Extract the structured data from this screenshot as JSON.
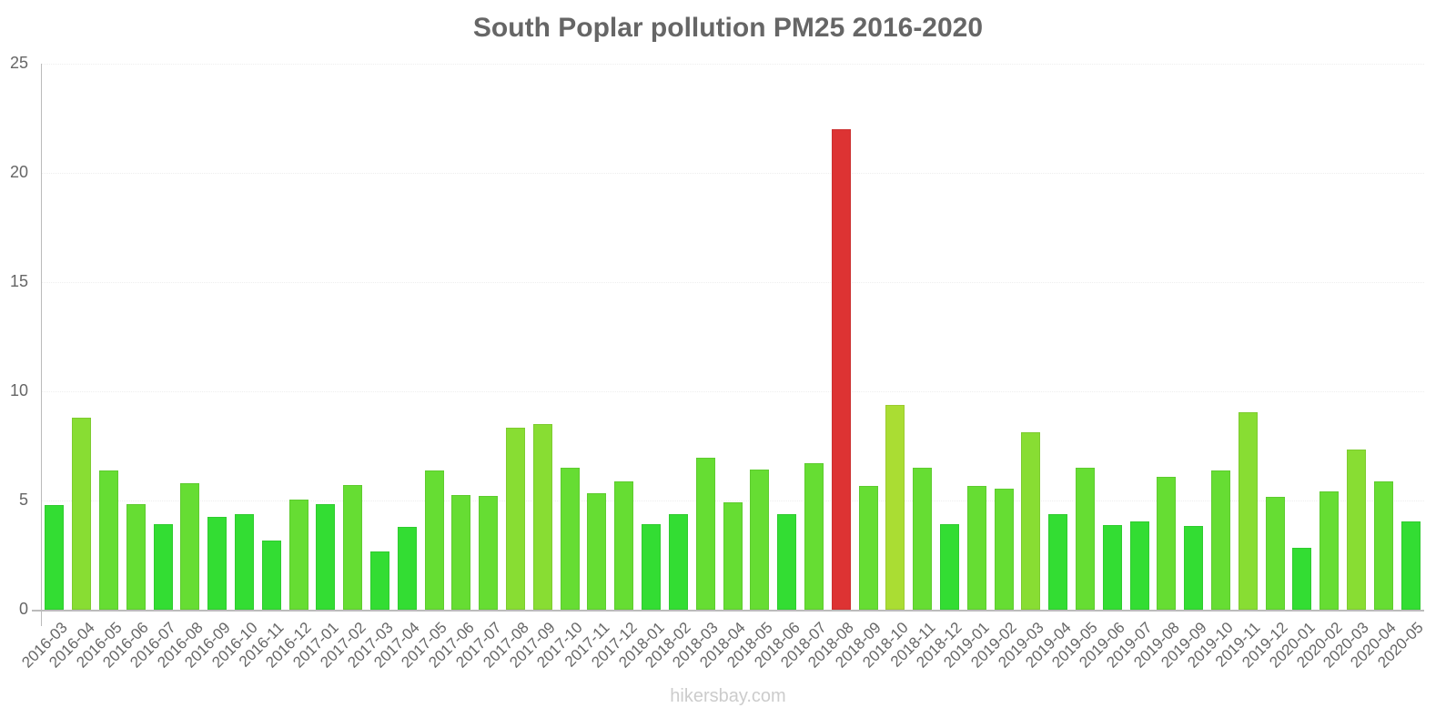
{
  "chart": {
    "title": "South Poplar pollution PM25 2016-2020",
    "footer": "hikersbay.com"
  },
  "chart_data": {
    "type": "bar",
    "title": "South Poplar pollution PM25 2016-2020",
    "xlabel": "",
    "ylabel": "",
    "ylim": [
      0,
      25
    ],
    "yticks": [
      0,
      5,
      10,
      15,
      20,
      25
    ],
    "grid": true,
    "legend": null,
    "categories": [
      "2016-03",
      "2016-04",
      "2016-05",
      "2016-06",
      "2016-07",
      "2016-08",
      "2016-09",
      "2016-10",
      "2016-11",
      "2016-12",
      "2017-01",
      "2017-02",
      "2017-03",
      "2017-04",
      "2017-05",
      "2017-06",
      "2017-07",
      "2017-08",
      "2017-09",
      "2017-10",
      "2017-11",
      "2017-12",
      "2018-01",
      "2018-02",
      "2018-03",
      "2018-04",
      "2018-05",
      "2018-06",
      "2018-07",
      "2018-08",
      "2018-09",
      "2018-10",
      "2018-11",
      "2018-12",
      "2019-01",
      "2019-02",
      "2019-03",
      "2019-04",
      "2019-05",
      "2019-06",
      "2019-07",
      "2019-08",
      "2019-09",
      "2019-10",
      "2019-11",
      "2019-12",
      "2020-01",
      "2020-02",
      "2020-03",
      "2020-04",
      "2020-05"
    ],
    "values": [
      4.78,
      8.78,
      6.38,
      4.85,
      3.92,
      5.79,
      4.25,
      4.39,
      3.15,
      5.06,
      4.82,
      5.69,
      2.65,
      3.81,
      6.36,
      5.25,
      5.19,
      8.33,
      8.49,
      6.5,
      5.35,
      5.88,
      3.93,
      4.39,
      6.96,
      4.9,
      6.42,
      4.36,
      6.71,
      22.0,
      5.65,
      9.39,
      6.5,
      3.92,
      5.68,
      5.54,
      8.14,
      4.36,
      6.5,
      3.86,
      4.06,
      6.1,
      3.85,
      6.38,
      9.04,
      5.17,
      2.83,
      5.42,
      7.35,
      5.88,
      4.03
    ],
    "colors": [
      "#33dd33",
      "#88dd33",
      "#66dd33",
      "#66dd33",
      "#33dd33",
      "#66dd33",
      "#33dd33",
      "#33dd33",
      "#33dd33",
      "#66dd33",
      "#33dd33",
      "#66dd33",
      "#33dd33",
      "#33dd33",
      "#66dd33",
      "#66dd33",
      "#66dd33",
      "#88dd33",
      "#88dd33",
      "#66dd33",
      "#66dd33",
      "#66dd33",
      "#33dd33",
      "#33dd33",
      "#66dd33",
      "#66dd33",
      "#66dd33",
      "#33dd33",
      "#66dd33",
      "#dd3333",
      "#66dd33",
      "#aadd33",
      "#66dd33",
      "#33dd33",
      "#66dd33",
      "#66dd33",
      "#88dd33",
      "#33dd33",
      "#66dd33",
      "#33dd33",
      "#33dd33",
      "#66dd33",
      "#33dd33",
      "#66dd33",
      "#88dd33",
      "#66dd33",
      "#33dd33",
      "#66dd33",
      "#88dd33",
      "#66dd33",
      "#33dd33"
    ]
  }
}
